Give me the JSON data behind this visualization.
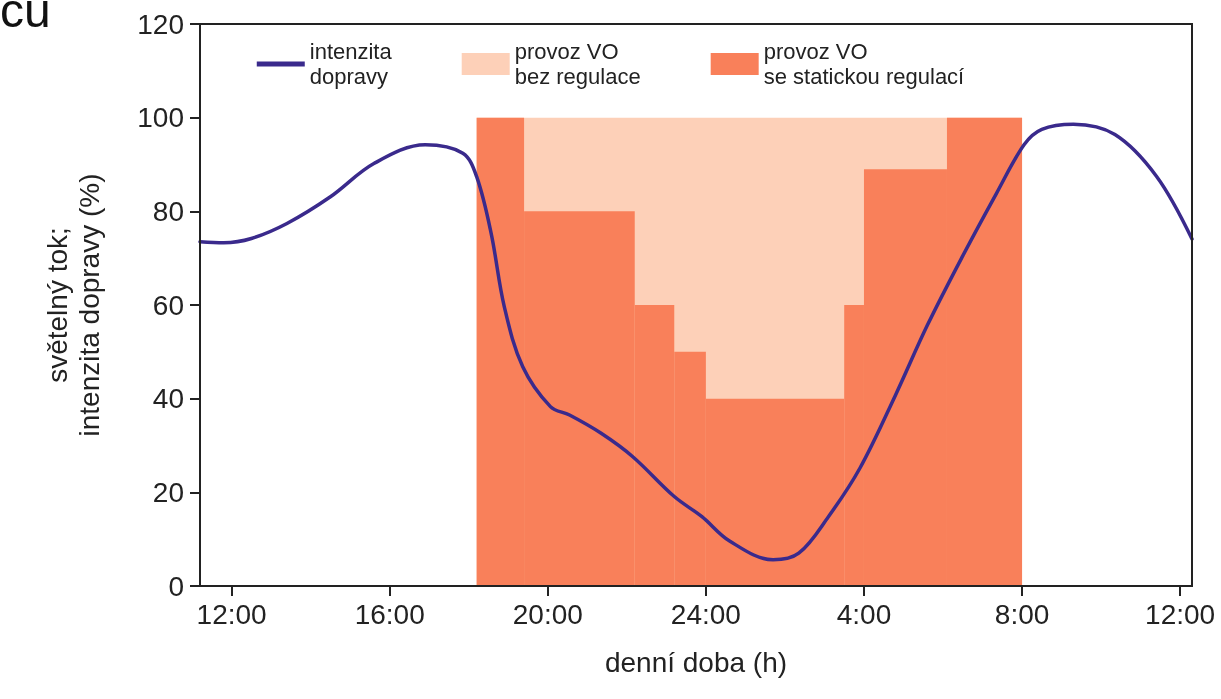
{
  "chart_data": {
    "type": "line",
    "xlabel": "denní doba (h)",
    "ylabel": "světelný tok;\nintenzita dopravy (%)",
    "annotations": [
      "cu"
    ],
    "xlim": [
      "2000-01-01T11:12",
      "2000-01-02T12:18"
    ],
    "ylim": [
      0,
      120
    ],
    "xticks": [
      {
        "value": "2000-01-01T12:00",
        "label": "12:00"
      },
      {
        "value": "2000-01-01T16:00",
        "label": "16:00"
      },
      {
        "value": "2000-01-01T20:00",
        "label": "20:00"
      },
      {
        "value": "2000-01-02T00:00",
        "label": "24:00"
      },
      {
        "value": "2000-01-02T04:00",
        "label": "4:00"
      },
      {
        "value": "2000-01-02T08:00",
        "label": "8:00"
      },
      {
        "value": "2000-01-02T12:00",
        "label": "12:00"
      }
    ],
    "yticks": [
      0,
      20,
      40,
      60,
      80,
      100,
      120
    ],
    "grid": false,
    "legend": "top",
    "series": [
      {
        "name": "intenzita\ndopravy",
        "color": "#3a2a8c",
        "x": [
          "2000-01-01T11:12",
          "2000-01-01T11:48",
          "2000-01-01T12:30",
          "2000-01-01T13:24",
          "2000-01-01T14:30",
          "2000-01-01T15:36",
          "2000-01-01T16:54",
          "2000-01-01T17:51",
          "2000-01-01T18:12",
          "2000-01-01T18:34",
          "2000-01-01T18:54",
          "2000-01-01T19:22",
          "2000-01-01T20:04",
          "2000-01-01T20:33",
          "2000-01-01T21:21",
          "2000-01-01T22:09",
          "2000-01-01T23:12",
          "2000-01-01T23:54",
          "2000-01-02T00:36",
          "2000-01-02T01:42",
          "2000-01-02T02:21",
          "2000-01-02T03:06",
          "2000-01-02T03:54",
          "2000-01-02T04:48",
          "2000-01-02T05:36",
          "2000-01-02T06:30",
          "2000-01-02T07:21",
          "2000-01-02T08:03",
          "2000-01-02T08:30",
          "2000-01-02T09:18",
          "2000-01-02T10:21",
          "2000-01-02T11:24",
          "2000-01-02T12:18"
        ],
        "values": [
          73.5,
          73.3,
          74.2,
          77.4,
          83.1,
          90.2,
          94.2,
          92.4,
          87.4,
          75.3,
          59.6,
          46.8,
          38.3,
          36.5,
          32.6,
          27.6,
          19.1,
          14.8,
          9.6,
          5.6,
          7.0,
          14.8,
          25.2,
          40.8,
          55.6,
          70.5,
          83.8,
          94.2,
          97.5,
          98.6,
          96.4,
          87.5,
          74.1
        ]
      },
      {
        "name": "provoz VO\nbez regulace",
        "type": "histogram",
        "color": "#fdd0b8",
        "bins": [
          "2000-01-01T18:12",
          "2000-01-02T08:00"
        ],
        "values": [
          100
        ]
      },
      {
        "name": "provoz VO\nse statickou regulací",
        "type": "histogram",
        "color": "#f9805a",
        "bins": [
          "2000-01-01T18:12",
          "2000-01-01T19:24",
          "2000-01-01T22:12",
          "2000-01-01T23:12",
          "2000-01-02T00:00",
          "2000-01-02T03:30",
          "2000-01-02T04:00",
          "2000-01-02T06:06",
          "2000-01-02T08:00"
        ],
        "values": [
          100,
          80,
          60,
          50,
          40,
          60,
          89,
          100
        ]
      }
    ]
  }
}
